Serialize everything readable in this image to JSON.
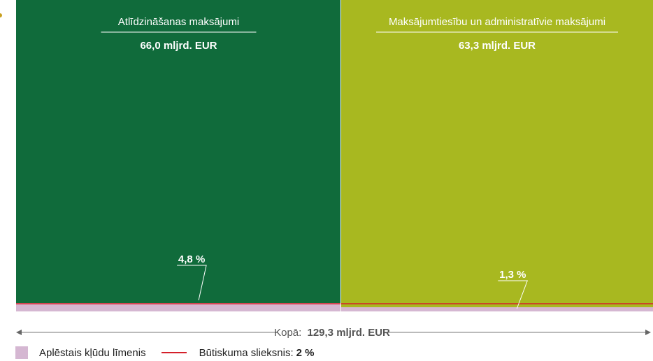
{
  "chart_data": {
    "type": "marimekko",
    "total": {
      "prefix": "Kopā:",
      "value_label": "129,3 mljrd. EUR",
      "value": 129.3,
      "unit": "mljrd. EUR"
    },
    "segments": [
      {
        "name": "Atlīdzināšanas maksājumi",
        "amount": 66.0,
        "amount_label": "66,0 mljrd. EUR",
        "error_rate": 4.8,
        "error_rate_label": "4,8 %",
        "color": "#106b3b"
      },
      {
        "name": "Maksājumtiesību un administratīvie maksājumi",
        "amount": 63.3,
        "amount_label": "63,3 mljrd. EUR",
        "error_rate": 1.3,
        "error_rate_label": "1,3 %",
        "color": "#a8b820"
      }
    ],
    "threshold": {
      "value": 2,
      "label": "Būtiskuma slieksnis:",
      "value_label": "2 %",
      "color": "#d4202a"
    },
    "error_color": "#d5b7d2"
  },
  "legend": {
    "error_label": "Aplēstais kļūdu līmenis",
    "threshold_label": "Būtiskuma slieksnis:",
    "threshold_value": "2 %"
  }
}
